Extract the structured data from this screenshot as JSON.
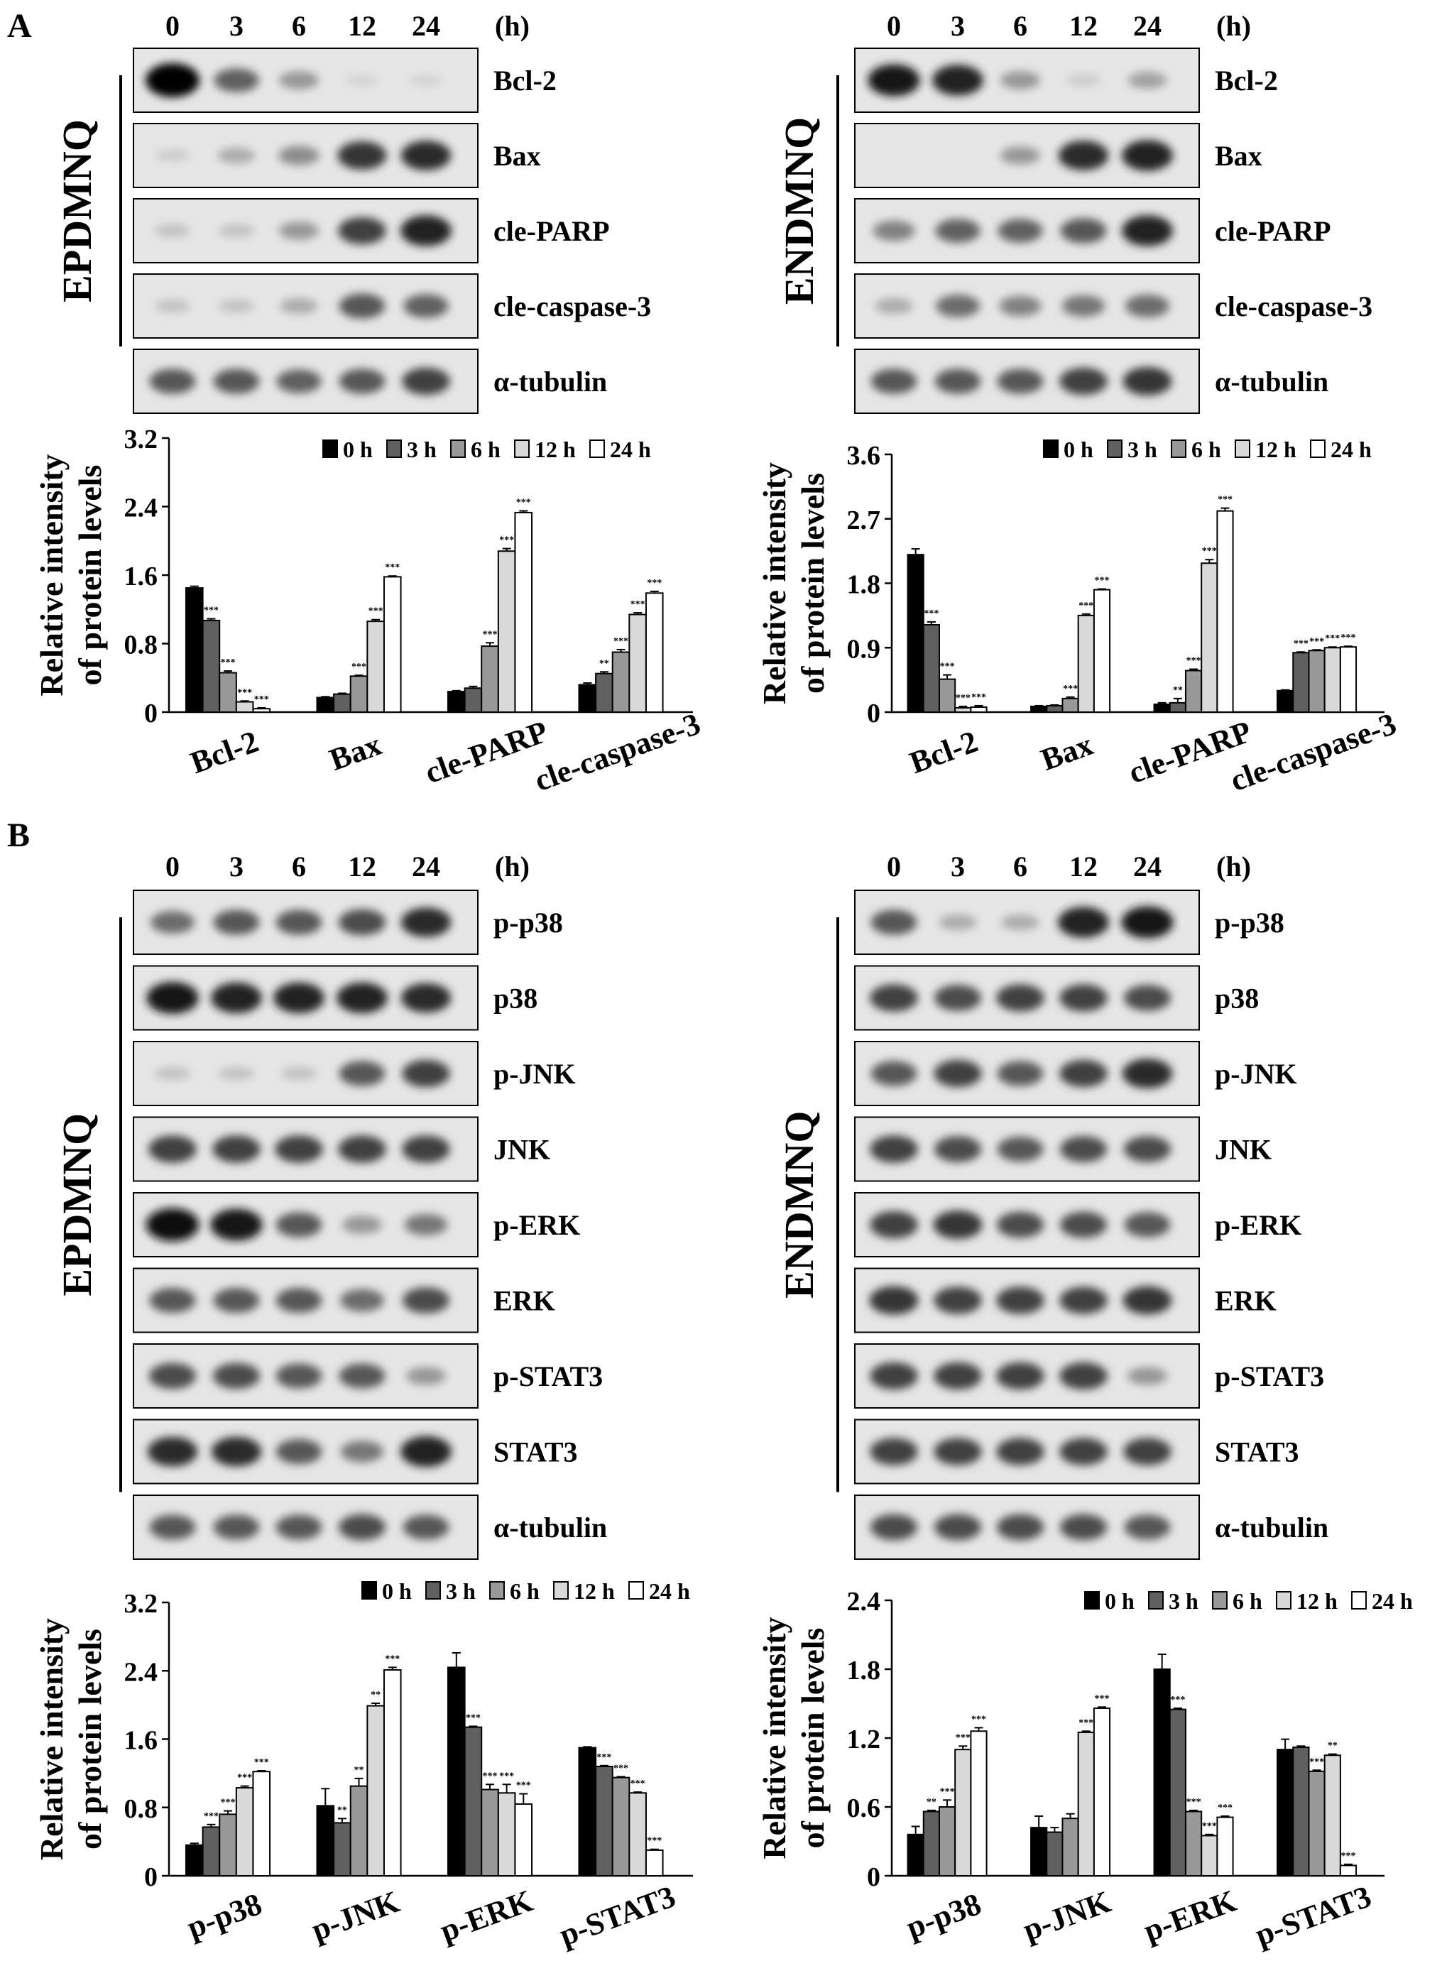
{
  "panel_labels": {
    "A": "A",
    "B": "B"
  },
  "blots": [
    {
      "cell": "EPDMNQ",
      "times": [
        "0",
        "3",
        "6",
        "12",
        "24"
      ],
      "unit": "(h)",
      "rows": [
        {
          "name": "Bcl-2",
          "levels": [
            1.0,
            0.55,
            0.3,
            0.02,
            0.02
          ]
        },
        {
          "name": "Bax",
          "levels": [
            0.05,
            0.2,
            0.35,
            0.75,
            0.8
          ]
        },
        {
          "name": "cle-PARP",
          "levels": [
            0.1,
            0.1,
            0.3,
            0.7,
            0.85
          ]
        },
        {
          "name": "cle-caspase-3",
          "levels": [
            0.1,
            0.1,
            0.2,
            0.6,
            0.55
          ]
        },
        {
          "name": "α-tubulin",
          "levels": [
            0.6,
            0.6,
            0.55,
            0.6,
            0.7
          ]
        }
      ]
    },
    {
      "cell": "ENDMNQ",
      "times": [
        "0",
        "3",
        "6",
        "12",
        "24"
      ],
      "unit": "(h)",
      "rows": [
        {
          "name": "Bcl-2",
          "levels": [
            0.9,
            0.85,
            0.3,
            0.05,
            0.25
          ]
        },
        {
          "name": "Bax",
          "levels": [
            0.0,
            0.0,
            0.3,
            0.8,
            0.85
          ]
        },
        {
          "name": "cle-PARP",
          "levels": [
            0.4,
            0.55,
            0.55,
            0.6,
            0.85
          ]
        },
        {
          "name": "cle-caspase-3",
          "levels": [
            0.2,
            0.5,
            0.4,
            0.45,
            0.5
          ]
        },
        {
          "name": "α-tubulin",
          "levels": [
            0.6,
            0.6,
            0.6,
            0.7,
            0.75
          ]
        }
      ]
    },
    {
      "cell": "EPDMNQ",
      "times": [
        "0",
        "3",
        "6",
        "12",
        "24"
      ],
      "unit": "(h)",
      "rows": [
        {
          "name": "p-p38",
          "levels": [
            0.5,
            0.6,
            0.6,
            0.65,
            0.8
          ]
        },
        {
          "name": "p38",
          "levels": [
            0.9,
            0.85,
            0.85,
            0.85,
            0.8
          ]
        },
        {
          "name": "p-JNK",
          "levels": [
            0.1,
            0.1,
            0.1,
            0.6,
            0.7
          ]
        },
        {
          "name": "JNK",
          "levels": [
            0.7,
            0.7,
            0.7,
            0.7,
            0.7
          ]
        },
        {
          "name": "p-ERK",
          "levels": [
            0.95,
            0.9,
            0.6,
            0.3,
            0.45
          ]
        },
        {
          "name": "ERK",
          "levels": [
            0.6,
            0.6,
            0.6,
            0.5,
            0.65
          ]
        },
        {
          "name": "p-STAT3",
          "levels": [
            0.65,
            0.65,
            0.6,
            0.6,
            0.3
          ]
        },
        {
          "name": "STAT3",
          "levels": [
            0.8,
            0.8,
            0.6,
            0.45,
            0.85
          ]
        },
        {
          "name": "α-tubulin",
          "levels": [
            0.6,
            0.6,
            0.6,
            0.65,
            0.6
          ]
        }
      ]
    },
    {
      "cell": "ENDMNQ",
      "times": [
        "0",
        "3",
        "6",
        "12",
        "24"
      ],
      "unit": "(h)",
      "rows": [
        {
          "name": "p-p38",
          "levels": [
            0.6,
            0.2,
            0.2,
            0.85,
            0.9
          ]
        },
        {
          "name": "p38",
          "levels": [
            0.7,
            0.65,
            0.7,
            0.7,
            0.65
          ]
        },
        {
          "name": "p-JNK",
          "levels": [
            0.6,
            0.7,
            0.6,
            0.7,
            0.8
          ]
        },
        {
          "name": "JNK",
          "levels": [
            0.7,
            0.65,
            0.6,
            0.65,
            0.65
          ]
        },
        {
          "name": "p-ERK",
          "levels": [
            0.7,
            0.75,
            0.65,
            0.65,
            0.6
          ]
        },
        {
          "name": "ERK",
          "levels": [
            0.75,
            0.7,
            0.7,
            0.7,
            0.75
          ]
        },
        {
          "name": "p-STAT3",
          "levels": [
            0.7,
            0.7,
            0.7,
            0.7,
            0.3
          ]
        },
        {
          "name": "STAT3",
          "levels": [
            0.7,
            0.7,
            0.7,
            0.7,
            0.7
          ]
        },
        {
          "name": "α-tubulin",
          "levels": [
            0.65,
            0.65,
            0.65,
            0.65,
            0.6
          ]
        }
      ]
    }
  ],
  "chart_data": [
    {
      "type": "bar",
      "ylabel": "Relative intensity\nof protein levels",
      "ylim": [
        0,
        3.2
      ],
      "yticks": [
        "0",
        "0.8",
        "1.6",
        "2.4",
        "3.2"
      ],
      "categories": [
        "Bcl-2",
        "Bax",
        "cle-PARP",
        "cle-caspase-3"
      ],
      "series": [
        {
          "name": "0 h",
          "color": "#000000",
          "values": [
            1.45,
            0.17,
            0.24,
            0.32
          ],
          "err": [
            0.02,
            0.01,
            0.01,
            0.02
          ],
          "sig": [
            "",
            "",
            "",
            ""
          ]
        },
        {
          "name": "3 h",
          "color": "#606060",
          "values": [
            1.07,
            0.21,
            0.28,
            0.45
          ],
          "err": [
            0.02,
            0.01,
            0.02,
            0.02
          ],
          "sig": [
            "***",
            "",
            "",
            "**"
          ]
        },
        {
          "name": "6 h",
          "color": "#999999",
          "values": [
            0.46,
            0.42,
            0.77,
            0.7
          ],
          "err": [
            0.02,
            0.01,
            0.04,
            0.03
          ],
          "sig": [
            "***",
            "***",
            "***",
            "***"
          ]
        },
        {
          "name": "12 h",
          "color": "#d9d9d9",
          "values": [
            0.12,
            1.06,
            1.88,
            1.14
          ],
          "err": [
            0.01,
            0.02,
            0.03,
            0.02
          ],
          "sig": [
            "***",
            "***",
            "***",
            "***"
          ]
        },
        {
          "name": "24 h",
          "color": "#ffffff",
          "values": [
            0.04,
            1.58,
            2.33,
            1.39
          ],
          "err": [
            0.01,
            0.01,
            0.02,
            0.02
          ],
          "sig": [
            "***",
            "***",
            "***",
            "***"
          ]
        }
      ]
    },
    {
      "type": "bar",
      "ylabel": "Relative intensity\nof protein levels",
      "ylim": [
        0,
        3.6
      ],
      "yticks": [
        "0",
        "0.9",
        "1.8",
        "2.7",
        "3.6"
      ],
      "categories": [
        "Bcl-2",
        "Bax",
        "cle-PARP",
        "cle-caspase-3"
      ],
      "series": [
        {
          "name": "0 h",
          "color": "#000000",
          "values": [
            2.2,
            0.08,
            0.11,
            0.3
          ],
          "err": [
            0.08,
            0.01,
            0.02,
            0.01
          ],
          "sig": [
            "",
            "",
            "",
            ""
          ]
        },
        {
          "name": "3 h",
          "color": "#606060",
          "values": [
            1.22,
            0.09,
            0.13,
            0.83
          ],
          "err": [
            0.04,
            0.01,
            0.06,
            0.01
          ],
          "sig": [
            "***",
            "",
            "**",
            "***"
          ]
        },
        {
          "name": "6 h",
          "color": "#999999",
          "values": [
            0.46,
            0.19,
            0.58,
            0.86
          ],
          "err": [
            0.06,
            0.02,
            0.02,
            0.01
          ],
          "sig": [
            "***",
            "***",
            "***",
            "***"
          ]
        },
        {
          "name": "12 h",
          "color": "#d9d9d9",
          "values": [
            0.06,
            1.35,
            2.08,
            0.9
          ],
          "err": [
            0.02,
            0.02,
            0.05,
            0.01
          ],
          "sig": [
            "***",
            "***",
            "***",
            "***"
          ]
        },
        {
          "name": "24 h",
          "color": "#ffffff",
          "values": [
            0.07,
            1.71,
            2.81,
            0.91
          ],
          "err": [
            0.02,
            0.01,
            0.04,
            0.01
          ],
          "sig": [
            "***",
            "***",
            "***",
            "***"
          ]
        }
      ]
    },
    {
      "type": "bar",
      "ylabel": "Relative intensity\nof protein levels",
      "ylim": [
        0,
        3.2
      ],
      "yticks": [
        "0",
        "0.8",
        "1.6",
        "2.4",
        "3.2"
      ],
      "categories": [
        "p-p38",
        "p-JNK",
        "p-ERK",
        "p-STAT3"
      ],
      "series": [
        {
          "name": "0 h",
          "color": "#000000",
          "values": [
            0.36,
            0.82,
            2.44,
            1.5
          ],
          "err": [
            0.02,
            0.2,
            0.17,
            0.01
          ],
          "sig": [
            "",
            "",
            "",
            ""
          ]
        },
        {
          "name": "3 h",
          "color": "#606060",
          "values": [
            0.57,
            0.62,
            1.74,
            1.28
          ],
          "err": [
            0.03,
            0.05,
            0.01,
            0.01
          ],
          "sig": [
            "***",
            "**",
            "***",
            "***"
          ]
        },
        {
          "name": "6 h",
          "color": "#999999",
          "values": [
            0.72,
            1.05,
            1.01,
            1.15
          ],
          "err": [
            0.04,
            0.09,
            0.06,
            0.01
          ],
          "sig": [
            "***",
            "**",
            "***",
            "***"
          ]
        },
        {
          "name": "12 h",
          "color": "#d9d9d9",
          "values": [
            1.03,
            1.99,
            0.97,
            0.97
          ],
          "err": [
            0.02,
            0.03,
            0.1,
            0.01
          ],
          "sig": [
            "***",
            "**",
            "***",
            "***"
          ]
        },
        {
          "name": "24 h",
          "color": "#ffffff",
          "values": [
            1.22,
            2.41,
            0.84,
            0.3
          ],
          "err": [
            0.01,
            0.03,
            0.12,
            0.01
          ],
          "sig": [
            "***",
            "***",
            "***",
            "***"
          ]
        }
      ]
    },
    {
      "type": "bar",
      "ylabel": "Relative intensity\nof protein levels",
      "ylim": [
        0,
        2.4
      ],
      "yticks": [
        "0",
        "0.6",
        "1.2",
        "1.8",
        "2.4"
      ],
      "categories": [
        "p-p38",
        "p-JNK",
        "p-ERK",
        "p-STAT3"
      ],
      "series": [
        {
          "name": "0 h",
          "color": "#000000",
          "values": [
            0.36,
            0.42,
            1.8,
            1.1
          ],
          "err": [
            0.07,
            0.1,
            0.13,
            0.09
          ],
          "sig": [
            "",
            "",
            "",
            ""
          ]
        },
        {
          "name": "3 h",
          "color": "#606060",
          "values": [
            0.56,
            0.38,
            1.45,
            1.12
          ],
          "err": [
            0.01,
            0.04,
            0.01,
            0.01
          ],
          "sig": [
            "**",
            "",
            "***",
            ""
          ]
        },
        {
          "name": "6 h",
          "color": "#999999",
          "values": [
            0.6,
            0.5,
            0.56,
            0.91
          ],
          "err": [
            0.06,
            0.04,
            0.01,
            0.01
          ],
          "sig": [
            "***",
            "",
            "***",
            "***"
          ]
        },
        {
          "name": "12 h",
          "color": "#d9d9d9",
          "values": [
            1.1,
            1.25,
            0.35,
            1.05
          ],
          "err": [
            0.03,
            0.01,
            0.01,
            0.01
          ],
          "sig": [
            "***",
            "***",
            "***",
            "**"
          ]
        },
        {
          "name": "24 h",
          "color": "#ffffff",
          "values": [
            1.26,
            1.46,
            0.51,
            0.09
          ],
          "err": [
            0.03,
            0.01,
            0.01,
            0.01
          ],
          "sig": [
            "***",
            "***",
            "***",
            "***"
          ]
        }
      ]
    }
  ]
}
